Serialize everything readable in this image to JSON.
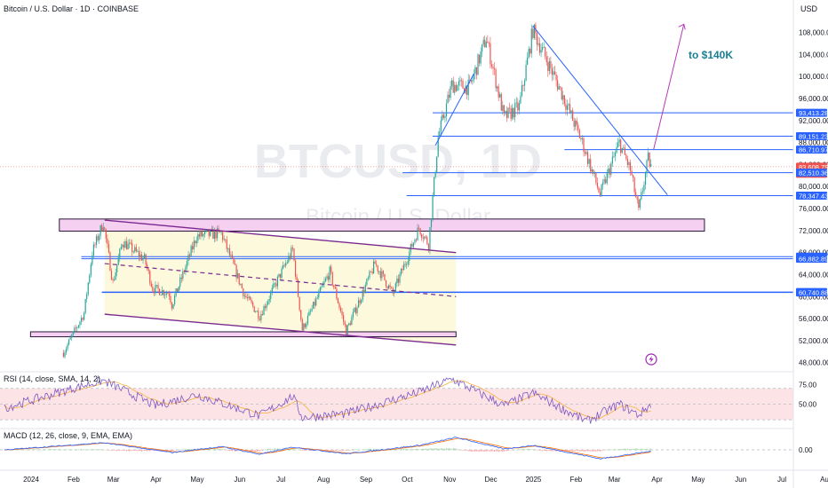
{
  "header": {
    "title": "Bitcoin / U.S. Dollar · 1D · COINBASE",
    "currency": "USD"
  },
  "watermark": {
    "symbol": "BTCUSD, 1D",
    "name": "Bitcoin / U.S. Dollar"
  },
  "annotation": {
    "target_text": "to $140K",
    "color": "#1a7f92"
  },
  "colors": {
    "up": "#26a69a",
    "down": "#ef5350",
    "line": "#2962ff",
    "trend": "#7b2a8e",
    "zone": "#f6d0f1",
    "channel_fill": "#fdf9dc",
    "rsi_band": "#fbe3e6",
    "rsi": "#7e57c2",
    "rsi_sma": "#f5b041",
    "macd": "#2962ff",
    "signal": "#ff6d00",
    "tag": "#2962ff",
    "current_tag": "#ef5350"
  },
  "chart_data": [
    {
      "type": "candlestick",
      "title": "Bitcoin / U.S. Dollar · 1D · COINBASE",
      "ylim": [
        46500,
        111000
      ],
      "x_labels": [
        "2024",
        "Feb",
        "Mar",
        "Apr",
        "May",
        "Jun",
        "Jul",
        "Aug",
        "Sep",
        "Oct",
        "Nov",
        "Dec",
        "2025",
        "Feb",
        "Mar",
        "Apr",
        "May",
        "Jun",
        "Jul",
        "Au"
      ],
      "y_ticks": [
        48000,
        52000,
        56000,
        60000,
        64000,
        68000,
        72000,
        76000,
        80000,
        84000,
        88000,
        92000,
        96000,
        100000,
        104000,
        108000
      ],
      "y_tick_labels": [
        "48,000.00",
        "52,000.00",
        "56,000.00",
        "60,000.00",
        "64,000.00",
        "68,000.00",
        "72,000.00",
        "76,000.00",
        "80,000.00",
        "84,000.00",
        "88,000.00",
        "92,000.00",
        "96,000.00",
        "100,000.00",
        "104,000.00",
        "108,000.00"
      ],
      "series": [
        {
          "name": "close",
          "keypoints": [
            [
              "2024-02-13",
              49800
            ],
            [
              "2024-02-28",
              57000
            ],
            [
              "2024-03-05",
              68000
            ],
            [
              "2024-03-13",
              73500
            ],
            [
              "2024-03-20",
              62500
            ],
            [
              "2024-03-27",
              70000
            ],
            [
              "2024-04-12",
              66800
            ],
            [
              "2024-04-18",
              61500
            ],
            [
              "2024-04-30",
              60600
            ],
            [
              "2024-05-02",
              58500
            ],
            [
              "2024-05-20",
              71000
            ],
            [
              "2024-06-07",
              71500
            ],
            [
              "2024-06-24",
              60200
            ],
            [
              "2024-07-05",
              56500
            ],
            [
              "2024-07-29",
              68500
            ],
            [
              "2024-08-05",
              54000
            ],
            [
              "2024-08-25",
              64500
            ],
            [
              "2024-09-06",
              53700
            ],
            [
              "2024-09-27",
              66000
            ],
            [
              "2024-10-10",
              60500
            ],
            [
              "2024-10-29",
              72500
            ],
            [
              "2024-11-05",
              69500
            ],
            [
              "2024-11-12",
              89000
            ],
            [
              "2024-11-22",
              98500
            ],
            [
              "2024-12-05",
              98000
            ],
            [
              "2024-12-17",
              107000
            ],
            [
              "2024-12-30",
              92500
            ],
            [
              "2025-01-10",
              94500
            ],
            [
              "2025-01-20",
              108500
            ],
            [
              "2025-01-31",
              102500
            ],
            [
              "2025-02-10",
              97000
            ],
            [
              "2025-02-25",
              88000
            ],
            [
              "2025-03-10",
              78500
            ],
            [
              "2025-03-24",
              88000
            ],
            [
              "2025-04-01",
              83000
            ],
            [
              "2025-04-07",
              75500
            ],
            [
              "2025-04-10",
              79500
            ],
            [
              "2025-04-14",
              85000
            ],
            [
              "2025-04-16",
              83600
            ]
          ]
        }
      ],
      "price_tags": [
        {
          "value": 93413.28,
          "label": "93,413.28"
        },
        {
          "value": 89151.23,
          "label": "89,151.23"
        },
        {
          "value": 86710.97,
          "label": "86,710.97"
        },
        {
          "value": 83608.79,
          "label": "83,608.79",
          "countdown": "02:04:50",
          "current": true
        },
        {
          "value": 82510.36,
          "label": "82,510.36"
        },
        {
          "value": 78347.43,
          "label": "78,347.43"
        },
        {
          "value": 67252.23,
          "label": "67,252.23"
        },
        {
          "value": 66882.89,
          "label": "66,882.89"
        },
        {
          "value": 60839.57,
          "label": "60,839.57"
        },
        {
          "value": 60740.88,
          "label": "60,740.88"
        }
      ],
      "horizontal_levels": [
        {
          "value": 93413.28,
          "from": "2024-11-08"
        },
        {
          "value": 89151.23,
          "from": "2024-11-08"
        },
        {
          "value": 86710.97,
          "from": "2025-02-12"
        },
        {
          "value": 82510.36,
          "from": "2024-10-17"
        },
        {
          "value": 78347.43,
          "from": "2024-10-20"
        },
        {
          "value": 67252.23,
          "from": "2024-02-26"
        },
        {
          "value": 66882.89,
          "from": "2024-02-26"
        },
        {
          "value": 60839.57,
          "from": "2024-03-12"
        },
        {
          "value": 60740.88,
          "from": "2024-03-12"
        }
      ],
      "zones": [
        {
          "x": [
            "2024-02-10",
            "2025-05-25"
          ],
          "y": [
            71900,
            74100
          ]
        },
        {
          "x": [
            "2024-01-20",
            "2024-11-25"
          ],
          "y": [
            52700,
            53600
          ]
        }
      ],
      "channel": {
        "upper": [
          [
            "2024-03-14",
            73900
          ],
          [
            "2024-11-25",
            68000
          ]
        ],
        "middle": [
          [
            "2024-03-14",
            66000
          ],
          [
            "2024-11-25",
            60000
          ]
        ],
        "lower": [
          [
            "2024-03-14",
            56800
          ],
          [
            "2024-11-25",
            51200
          ]
        ]
      },
      "trendlines": [
        {
          "from": [
            "2025-01-20",
            109200
          ],
          "to": [
            "2025-04-28",
            78500
          ]
        },
        {
          "from": [
            "2024-11-10",
            87500
          ],
          "to": [
            "2024-12-08",
            100500
          ]
        }
      ],
      "projection_arrow": {
        "from": [
          "2025-04-18",
          86800
        ],
        "to": [
          "2025-05-10",
          109500
        ]
      }
    },
    {
      "type": "line",
      "title": "RSI (14, close, SMA, 14, 2)",
      "ylim": [
        20,
        90
      ],
      "y_ticks": [
        50,
        75
      ],
      "y_tick_labels": [
        "50.00",
        "75.00"
      ],
      "band": [
        30,
        70
      ],
      "series": [
        {
          "name": "RSI",
          "keypoints": [
            [
              "2024-01-01",
              45
            ],
            [
              "2024-02-20",
              70
            ],
            [
              "2024-03-13",
              80
            ],
            [
              "2024-04-20",
              48
            ],
            [
              "2024-05-20",
              62
            ],
            [
              "2024-07-05",
              35
            ],
            [
              "2024-07-29",
              60
            ],
            [
              "2024-08-05",
              33
            ],
            [
              "2024-09-06",
              38
            ],
            [
              "2024-10-29",
              65
            ],
            [
              "2024-11-22",
              82
            ],
            [
              "2024-12-30",
              48
            ],
            [
              "2025-01-20",
              64
            ],
            [
              "2025-02-28",
              28
            ],
            [
              "2025-03-24",
              50
            ],
            [
              "2025-04-07",
              36
            ],
            [
              "2025-04-16",
              50
            ]
          ]
        }
      ]
    },
    {
      "type": "line",
      "title": "MACD (12, 26, close, 9, EMA, EMA)",
      "y_ticks": [
        0
      ],
      "y_tick_labels": [
        "0.00"
      ],
      "series": [
        {
          "name": "MACD",
          "keypoints": [
            [
              "2024-01-01",
              0
            ],
            [
              "2024-03-13",
              4000
            ],
            [
              "2024-05-02",
              -1500
            ],
            [
              "2024-06-07",
              1800
            ],
            [
              "2024-07-05",
              -2500
            ],
            [
              "2024-07-29",
              1500
            ],
            [
              "2024-09-06",
              -2200
            ],
            [
              "2024-10-29",
              2500
            ],
            [
              "2024-11-25",
              7000
            ],
            [
              "2024-12-30",
              500
            ],
            [
              "2025-01-20",
              2500
            ],
            [
              "2025-03-10",
              -5000
            ],
            [
              "2025-04-16",
              -800
            ]
          ]
        }
      ]
    }
  ]
}
